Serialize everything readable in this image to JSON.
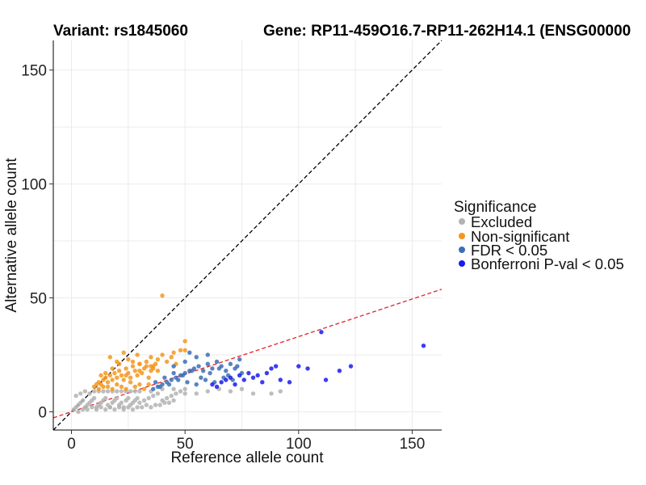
{
  "chart_data": {
    "type": "scatter",
    "title_left": "Variant: rs1845060",
    "title_right": "Gene: RP11-459O16.7-RP11-262H14.1 (ENSG00000",
    "xlabel": "Reference allele count",
    "ylabel": "Alternative allele count",
    "xlim": [
      -8,
      163
    ],
    "ylim": [
      -8,
      163
    ],
    "xticks": [
      0,
      50,
      100,
      150
    ],
    "yticks": [
      0,
      50,
      100,
      150
    ],
    "grid": true,
    "reference_lines": [
      {
        "name": "identity",
        "slope": 1,
        "intercept": 0,
        "color": "#000000",
        "dash": "dashed"
      },
      {
        "name": "allelic-ratio-fit",
        "slope": 0.33,
        "intercept": 0,
        "color": "#e8202a",
        "dash": "dashed"
      }
    ],
    "legend": {
      "title": "Significance",
      "position": "right",
      "items": [
        {
          "label": "Excluded",
          "color": "#b3b3b3"
        },
        {
          "label": "Non-significant",
          "color": "#f5961d"
        },
        {
          "label": "FDR < 0.05",
          "color": "#3b6fb6"
        },
        {
          "label": "Bonferroni P-val < 0.05",
          "color": "#1a1af0"
        }
      ]
    },
    "series": [
      {
        "name": "Excluded",
        "color": "#b3b3b3",
        "x": [
          1,
          2,
          3,
          4,
          5,
          6,
          7,
          8,
          9,
          10,
          11,
          12,
          13,
          14,
          15,
          16,
          17,
          18,
          19,
          20,
          21,
          22,
          23,
          24,
          25,
          26,
          27,
          28,
          29,
          30,
          32,
          34,
          36,
          38,
          40,
          42,
          44,
          46,
          48,
          50,
          3,
          5,
          7,
          9,
          11,
          13,
          15,
          17,
          19,
          21,
          23,
          25,
          27,
          29,
          31,
          33,
          35,
          37,
          39,
          41,
          43,
          45,
          2,
          4,
          6,
          8,
          10,
          12,
          14,
          16,
          18,
          20,
          22,
          24,
          26,
          28,
          30,
          35,
          40,
          45,
          50,
          55,
          60,
          65,
          70,
          75,
          80,
          88,
          92
        ],
        "y": [
          1,
          2,
          3,
          4,
          5,
          2,
          3,
          4,
          5,
          6,
          2,
          3,
          4,
          5,
          6,
          3,
          2,
          4,
          5,
          6,
          3,
          4,
          2,
          5,
          6,
          3,
          4,
          5,
          6,
          4,
          5,
          6,
          7,
          8,
          5,
          6,
          7,
          8,
          9,
          8,
          0,
          1,
          1,
          2,
          1,
          2,
          1,
          2,
          1,
          2,
          1,
          2,
          1,
          2,
          2,
          3,
          2,
          3,
          3,
          4,
          4,
          5,
          7,
          8,
          9,
          8,
          9,
          9,
          9,
          9,
          9,
          9,
          9,
          9,
          9,
          9,
          9,
          9,
          10,
          10,
          10,
          8,
          9,
          10,
          9,
          10,
          8,
          8,
          9
        ]
      },
      {
        "name": "Non-significant",
        "color": "#f5961d",
        "x": [
          10,
          11,
          12,
          13,
          14,
          15,
          16,
          17,
          18,
          19,
          20,
          21,
          22,
          23,
          24,
          25,
          26,
          27,
          28,
          29,
          30,
          31,
          32,
          33,
          34,
          35,
          36,
          37,
          38,
          12,
          14,
          16,
          18,
          20,
          22,
          24,
          26,
          28,
          30,
          32,
          34,
          15,
          18,
          21,
          24,
          27,
          30,
          33,
          36,
          20,
          25,
          30,
          35,
          40,
          45,
          50,
          13,
          17,
          23,
          29,
          35,
          38,
          40,
          42,
          44,
          46,
          48,
          50
        ],
        "y": [
          11,
          12,
          13,
          12,
          14,
          15,
          13,
          16,
          14,
          17,
          15,
          18,
          16,
          14,
          19,
          17,
          15,
          20,
          18,
          16,
          21,
          17,
          19,
          22,
          15,
          18,
          20,
          21,
          23,
          10,
          11,
          11,
          10,
          12,
          11,
          10,
          13,
          11,
          12,
          10,
          12,
          17,
          19,
          21,
          16,
          22,
          18,
          20,
          19,
          22,
          23,
          21,
          24,
          25,
          26,
          27,
          16,
          24,
          26,
          25,
          20,
          18,
          51,
          22,
          24,
          21,
          27,
          31
        ]
      },
      {
        "name": "FDR < 0.05",
        "color": "#3b6fb6",
        "x": [
          36,
          38,
          40,
          42,
          44,
          46,
          48,
          50,
          52,
          54,
          56,
          58,
          60,
          62,
          64,
          66,
          68,
          70,
          72,
          74,
          37,
          41,
          45,
          49,
          53,
          57,
          61,
          65,
          69,
          73,
          39,
          43,
          47,
          51,
          55,
          59,
          63,
          67,
          71,
          75,
          45,
          50,
          55,
          60,
          52
        ],
        "y": [
          10,
          11,
          12,
          13,
          14,
          15,
          16,
          17,
          18,
          19,
          20,
          18,
          21,
          19,
          22,
          20,
          18,
          21,
          19,
          23,
          13,
          15,
          17,
          16,
          18,
          15,
          17,
          19,
          16,
          20,
          11,
          12,
          14,
          13,
          12,
          14,
          13,
          15,
          14,
          17,
          20,
          22,
          24,
          25,
          26
        ]
      },
      {
        "name": "Bonferroni P-val < 0.05",
        "color": "#1a1af0",
        "x": [
          62,
          64,
          66,
          68,
          70,
          72,
          74,
          76,
          78,
          80,
          82,
          84,
          86,
          88,
          90,
          92,
          96,
          100,
          104,
          110,
          112,
          118,
          123,
          155
        ],
        "y": [
          12,
          11,
          13,
          14,
          15,
          12,
          16,
          14,
          17,
          15,
          16,
          13,
          17,
          19,
          20,
          14,
          13,
          20,
          19,
          35,
          14,
          18,
          20,
          29
        ]
      }
    ]
  }
}
